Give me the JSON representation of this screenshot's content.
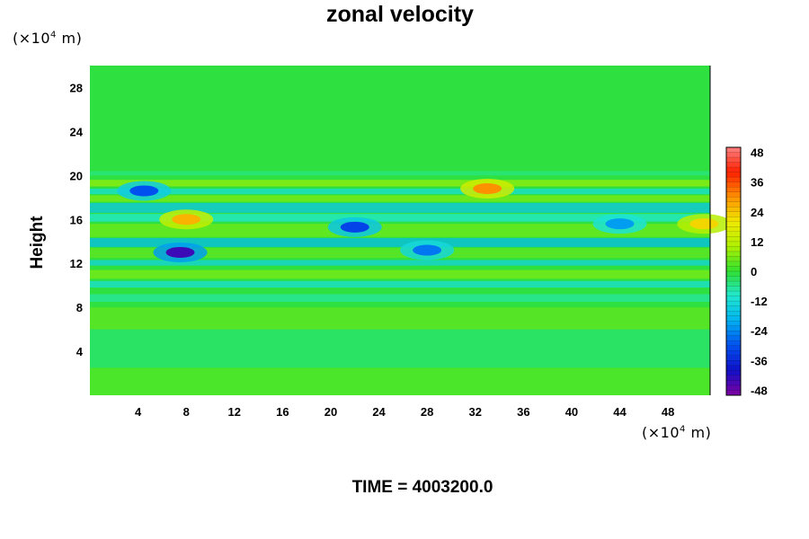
{
  "chart_data": {
    "type": "heatmap",
    "title": "zonal velocity",
    "xlabel": "",
    "ylabel": "Height",
    "x_unit": "m",
    "x_unit_exponent": "4",
    "y_unit": "m",
    "y_unit_exponent": "4",
    "xlim": [
      0,
      51.5
    ],
    "ylim": [
      0,
      30
    ],
    "x_ticks": [
      4,
      8,
      12,
      16,
      20,
      24,
      28,
      32,
      36,
      40,
      44,
      48
    ],
    "y_ticks": [
      4,
      8,
      12,
      16,
      20,
      24,
      28
    ],
    "colorbar": {
      "range": [
        -50,
        50
      ],
      "ticks": [
        48,
        36,
        24,
        12,
        0,
        -12,
        -24,
        -36,
        -48
      ],
      "colormap": [
        "#8000a0",
        "#1010c8",
        "#0050f0",
        "#00b0f0",
        "#20e8d0",
        "#30e030",
        "#b0f000",
        "#f0e800",
        "#ff9000",
        "#ff2000",
        "#ff8080"
      ]
    },
    "features": [
      {
        "x": 7.5,
        "y": 13.0,
        "value": -44
      },
      {
        "x": 4.5,
        "y": 18.6,
        "value": -30
      },
      {
        "x": 22.0,
        "y": 15.3,
        "value": -32
      },
      {
        "x": 28.0,
        "y": 13.2,
        "value": -26
      },
      {
        "x": 33.0,
        "y": 18.8,
        "value": 30
      },
      {
        "x": 8.0,
        "y": 16.0,
        "value": 26
      },
      {
        "x": 51.0,
        "y": 15.6,
        "value": 22
      },
      {
        "x": 44.0,
        "y": 15.6,
        "value": -22
      }
    ]
  },
  "time_label": "TIME = 4003200.0"
}
